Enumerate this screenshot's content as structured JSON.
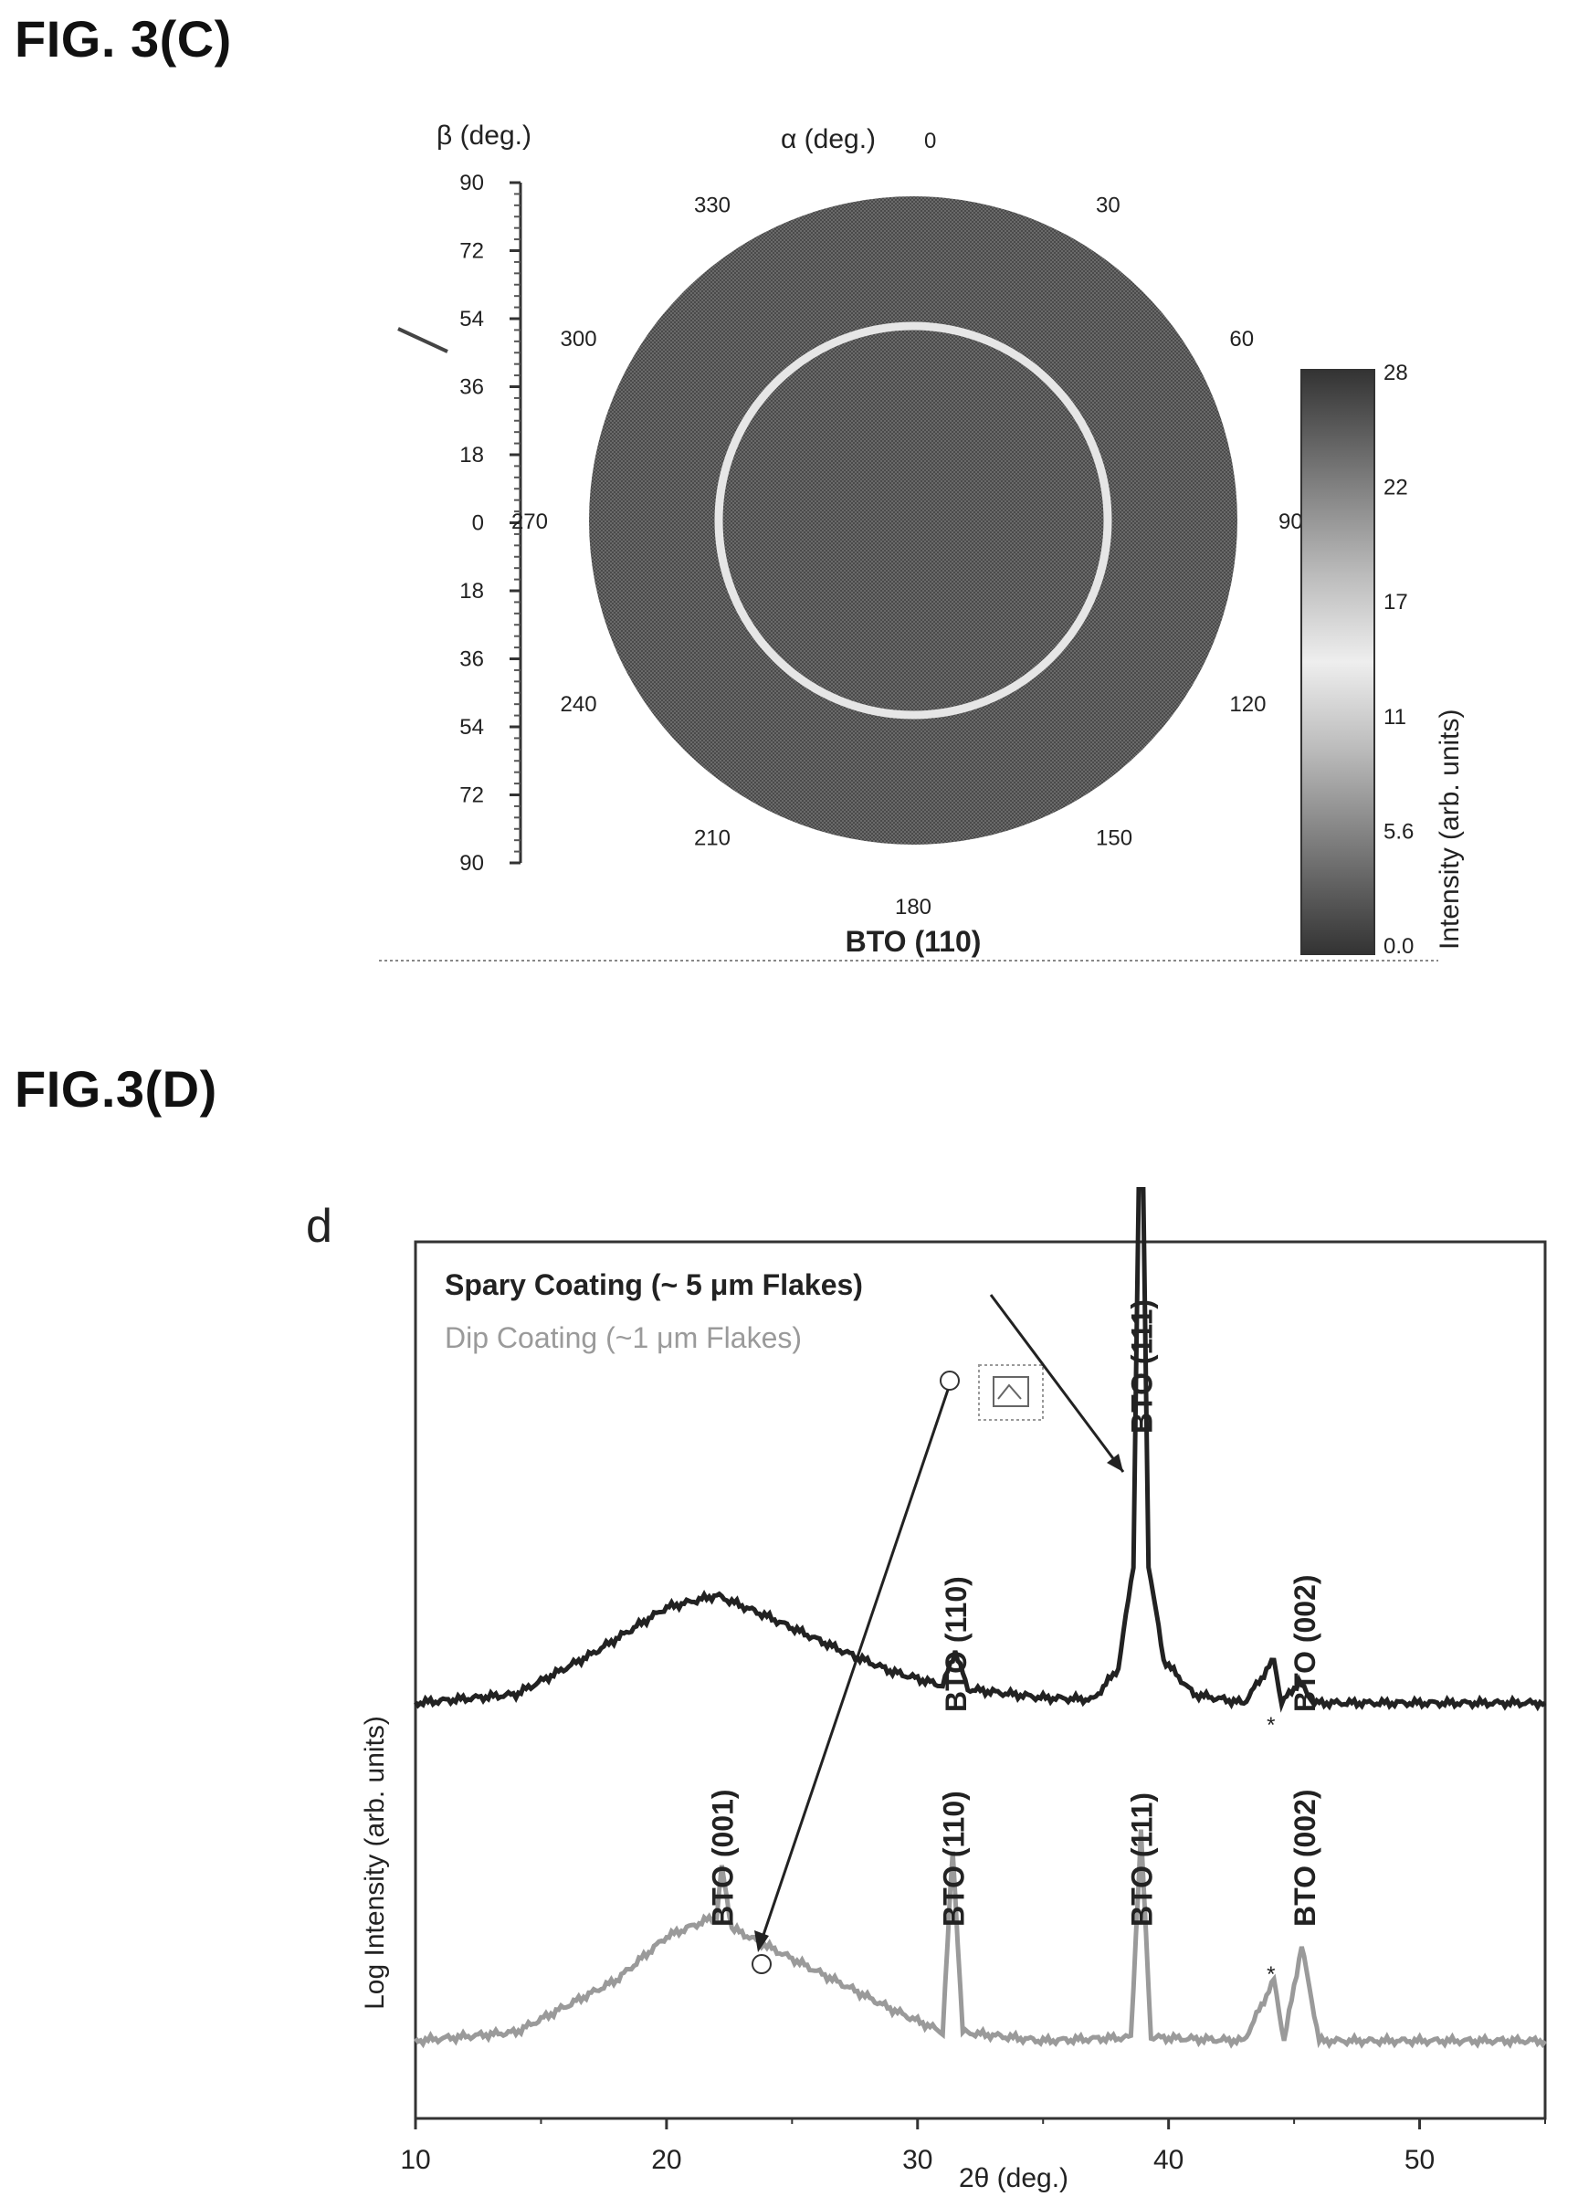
{
  "figures": {
    "c_label": "FIG. 3(C)",
    "d_label": "FIG.3(D)"
  },
  "colors": {
    "spray": "#222222",
    "dip": "#9a9a9a",
    "pole_fill": "#555555",
    "ring": "#e6e6e6"
  },
  "chart_data": [
    {
      "type": "heatmap",
      "subtype": "pole_figure",
      "title": "BTO (110)",
      "beta_axis": {
        "label": "β (deg.)",
        "ticks": [
          "90",
          "72",
          "54",
          "36",
          "18",
          "0",
          "18",
          "36",
          "54",
          "72",
          "90"
        ]
      },
      "alpha_axis": {
        "label": "α (deg.)",
        "ticks": [
          "0",
          "30",
          "60",
          "90",
          "120",
          "150",
          "180",
          "210",
          "240",
          "270",
          "300",
          "330"
        ]
      },
      "ring_beta_deg": 54,
      "colorbar": {
        "label": "Intensity (arb. units)",
        "ticks": [
          "28",
          "22",
          "17",
          "11",
          "5.6",
          "0.0"
        ],
        "range": [
          0.0,
          28
        ]
      }
    },
    {
      "type": "line",
      "panel_letter": "d",
      "xlabel": "2θ (deg.)",
      "ylabel": "Log Intensity (arb. units)",
      "xlim": [
        10,
        55
      ],
      "xticks": [
        "10",
        "20",
        "30",
        "40",
        "50"
      ],
      "log_y": true,
      "series": [
        {
          "name": "Spary Coating (~ 5 μm Flakes)",
          "color": "#222222",
          "points": [
            [
              10,
              0.0
            ],
            [
              14,
              0.05
            ],
            [
              17,
              0.28
            ],
            [
              20,
              0.55
            ],
            [
              22,
              0.62
            ],
            [
              24,
              0.5
            ],
            [
              27,
              0.3
            ],
            [
              29,
              0.18
            ],
            [
              31,
              0.1
            ],
            [
              31.5,
              0.3
            ],
            [
              32,
              0.08
            ],
            [
              35,
              0.03
            ],
            [
              37,
              0.02
            ],
            [
              38,
              0.2
            ],
            [
              38.6,
              0.8
            ],
            [
              38.9,
              3.9
            ],
            [
              39.2,
              0.8
            ],
            [
              39.8,
              0.25
            ],
            [
              41,
              0.05
            ],
            [
              43,
              0.0
            ],
            [
              44.2,
              0.25
            ],
            [
              44.5,
              0.0
            ],
            [
              45.2,
              0.12
            ],
            [
              45.8,
              0.0
            ],
            [
              55,
              0.0
            ]
          ]
        },
        {
          "name": "Dip Coating (~1  μm Flakes)",
          "color": "#9a9a9a",
          "points": [
            [
              10,
              0.0
            ],
            [
              14,
              0.05
            ],
            [
              18,
              0.35
            ],
            [
              20,
              0.6
            ],
            [
              22,
              0.72
            ],
            [
              22.2,
              1.0
            ],
            [
              22.6,
              0.65
            ],
            [
              26,
              0.4
            ],
            [
              29,
              0.18
            ],
            [
              31,
              0.05
            ],
            [
              31.4,
              1.1
            ],
            [
              31.8,
              0.05
            ],
            [
              35,
              0.0
            ],
            [
              38.5,
              0.02
            ],
            [
              38.9,
              1.2
            ],
            [
              39.3,
              0.02
            ],
            [
              43,
              0.0
            ],
            [
              44.2,
              0.35
            ],
            [
              44.6,
              0.0
            ],
            [
              45.3,
              0.55
            ],
            [
              46,
              0.0
            ],
            [
              55,
              0.0
            ]
          ]
        }
      ],
      "annotations": {
        "spray_peaks": [
          "BTO (111)",
          "BTO (110)",
          "*",
          "BTO (002)"
        ],
        "dip_peaks": [
          "BTO (001)",
          "BTO (110)",
          "BTO (111)",
          "*",
          "BTO (002)"
        ]
      },
      "legend": [
        "Spary Coating (~ 5 μm Flakes)",
        "Dip Coating (~1  μm Flakes)"
      ],
      "legend_position": "top-left"
    }
  ]
}
